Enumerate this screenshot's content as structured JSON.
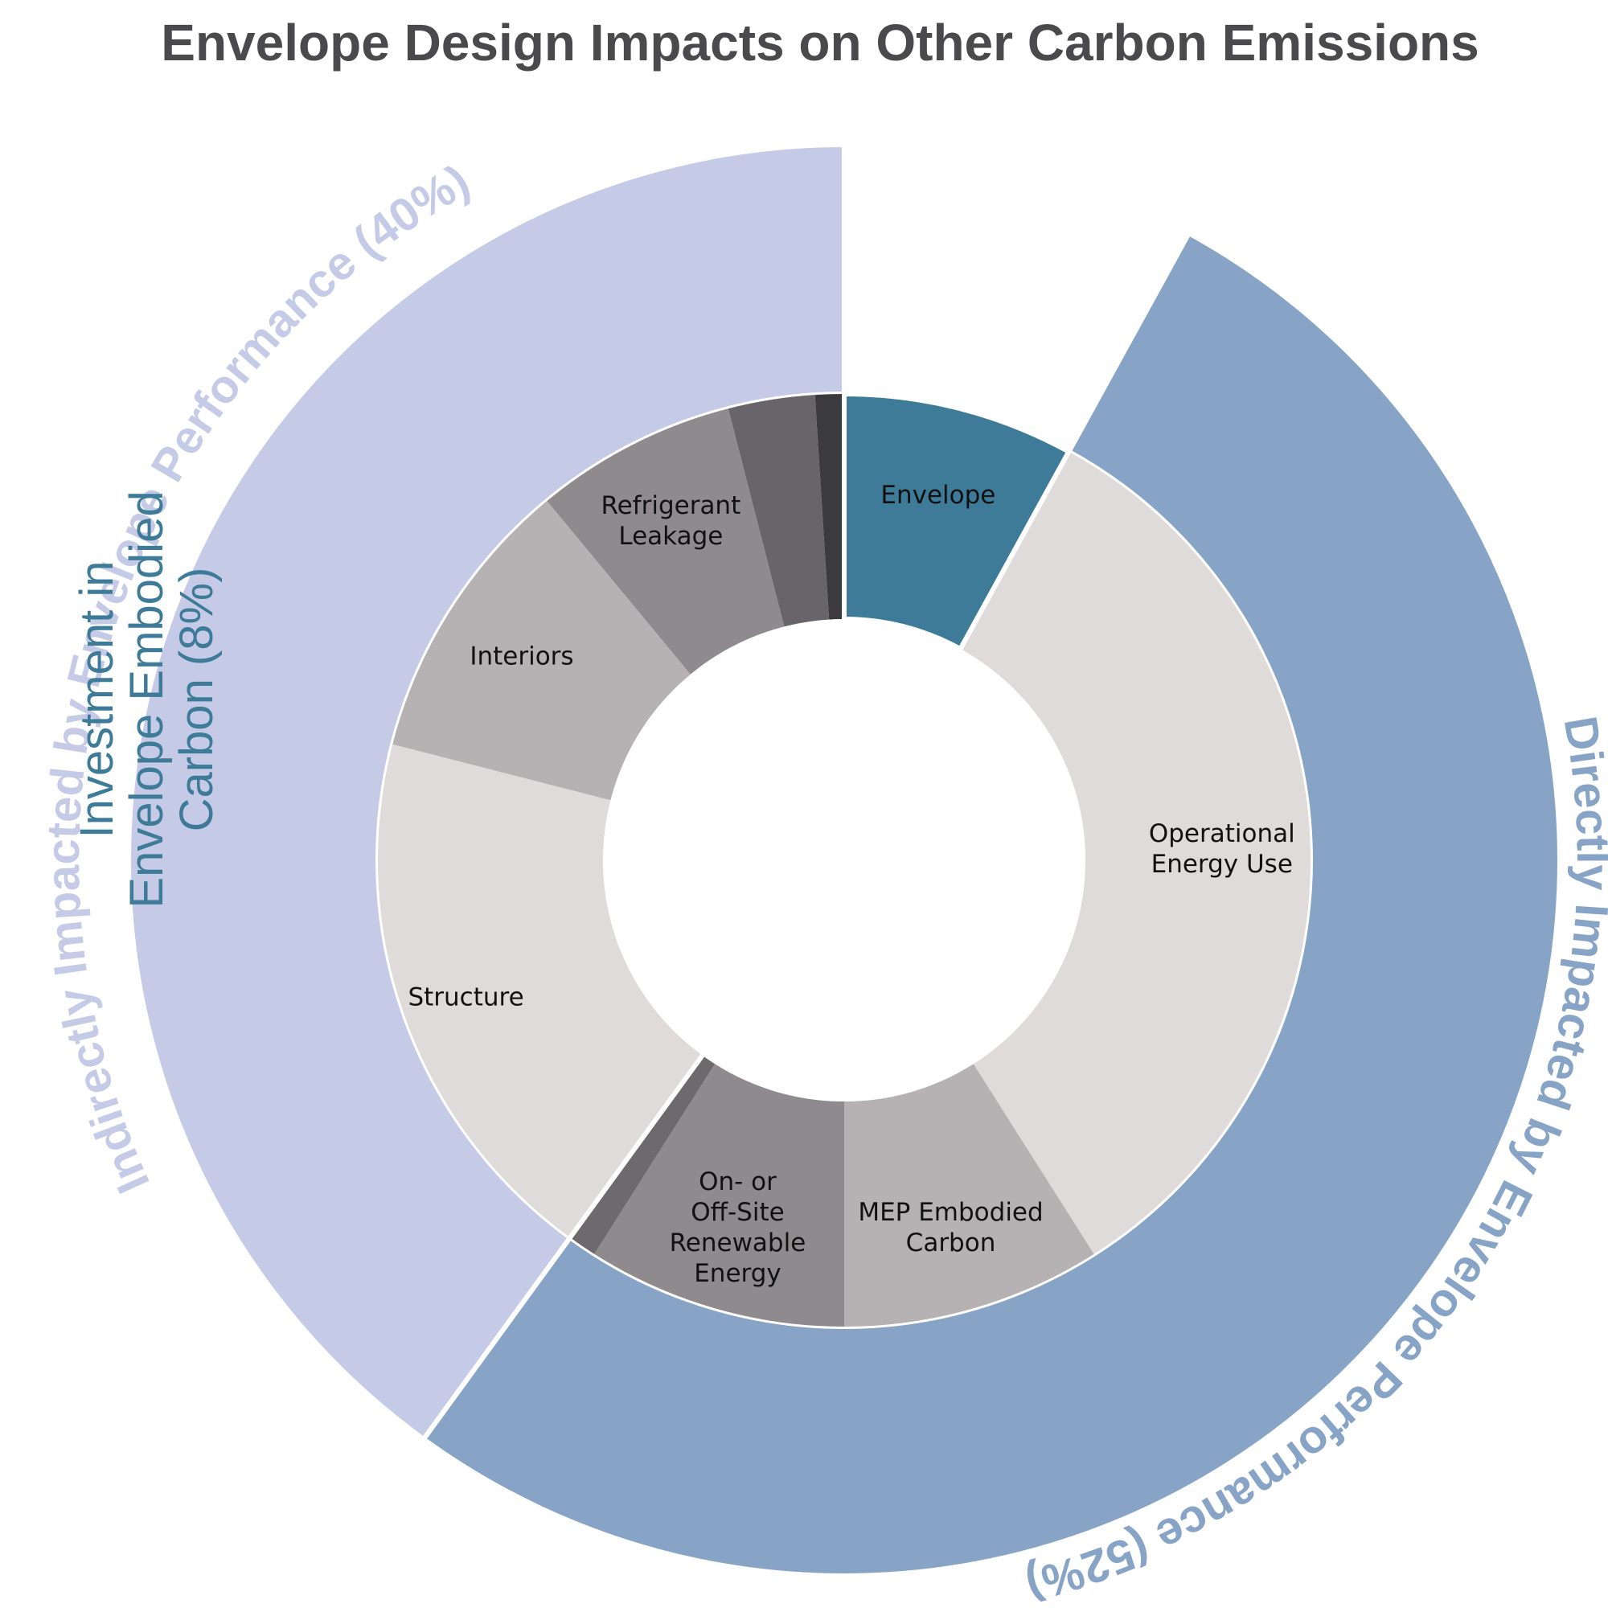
{
  "chart_data": {
    "type": "pie",
    "subtype": "sunburst",
    "title": "Envelope Design Impacts on Other Carbon Emissions",
    "groups": [
      {
        "name": "Directly Impacted by Envelope Performance (52%)",
        "value": 52,
        "color": "#87a4c6",
        "children": [
          {
            "label": "Operational Energy Use",
            "lines": [
              "Operational",
              "Energy Use"
            ],
            "value": 33,
            "color": "#e0dbdb"
          },
          {
            "label": "MEP Embodied Carbon",
            "lines": [
              "MEP Embodied",
              "Carbon"
            ],
            "value": 9,
            "color": "#b6b1b3"
          },
          {
            "label": "On- or Off-Site Renewable Energy",
            "lines": [
              "On- or",
              "Off-Site",
              "Renewable",
              "Energy"
            ],
            "value": 9,
            "color": "#8f8a8d"
          },
          {
            "label": "",
            "lines": [],
            "value": 1,
            "color": "#6d696d"
          }
        ]
      },
      {
        "name": "Indirectly Impacted by Envelope Performance (40%)",
        "value": 40,
        "color": "#c5cae6",
        "children": [
          {
            "label": "",
            "lines": [],
            "value": 1,
            "color": "#3b3a3e"
          },
          {
            "label": "",
            "lines": [],
            "value": 3,
            "color": "#67646a"
          },
          {
            "label": "Refrigerant Leakage",
            "lines": [
              "Refrigerant",
              "Leakage"
            ],
            "value": 7,
            "color": "#8f8a8d"
          },
          {
            "label": "Interiors",
            "lines": [
              "Interiors"
            ],
            "value": 10,
            "color": "#b6b1b3"
          },
          {
            "label": "Structure",
            "lines": [
              "Structure"
            ],
            "value": 19,
            "color": "#e0dbdb"
          }
        ]
      },
      {
        "name": "Investment in Envelope Embodied Carbon (8%)",
        "name_lines": [
          "Investment in",
          "Envelope Embodied",
          "Carbon (8%)"
        ],
        "value": 8,
        "color": "#3e7b98",
        "children": [
          {
            "label": "Envelope",
            "lines": [
              "Envelope"
            ],
            "value": 8,
            "color": "#3e7b98"
          }
        ]
      }
    ]
  }
}
